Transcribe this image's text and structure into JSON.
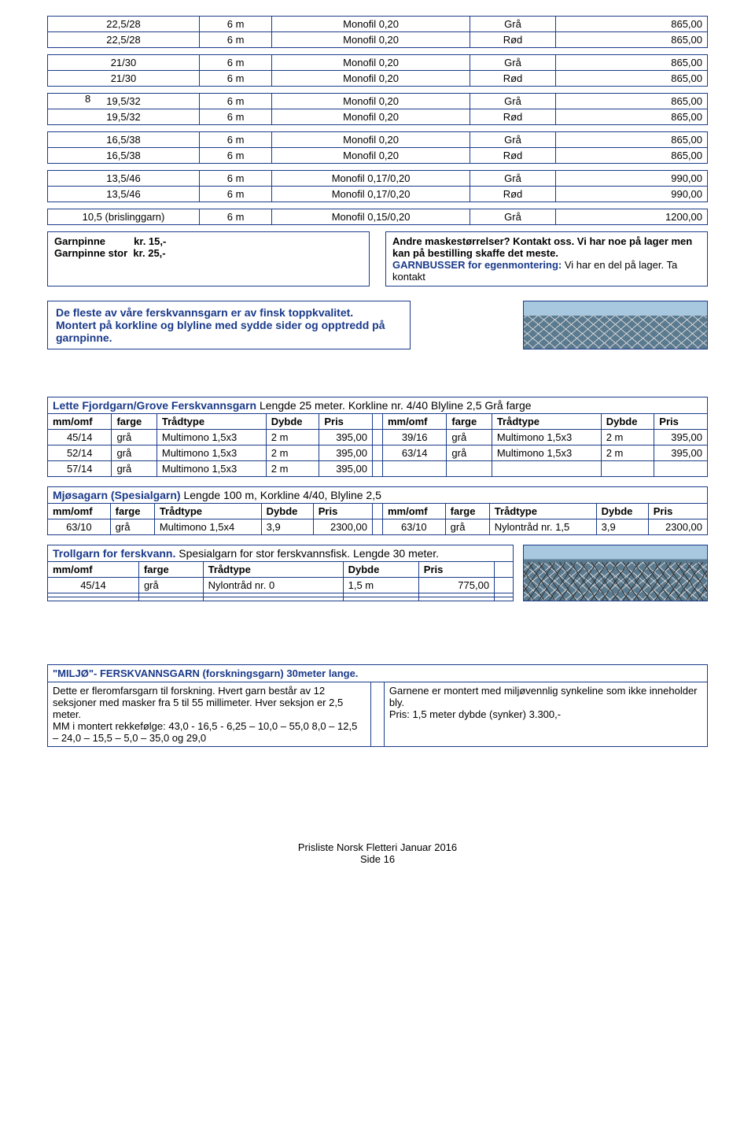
{
  "tables": {
    "a": [
      [
        "22,5/28",
        "6 m",
        "Monofil 0,20",
        "Grå",
        "865,00"
      ],
      [
        "22,5/28",
        "6 m",
        "Monofil 0,20",
        "Rød",
        "865,00"
      ]
    ],
    "b": [
      [
        "21/30",
        "6 m",
        "Monofil 0,20",
        "Grå",
        "865,00"
      ],
      [
        "21/30",
        "6 m",
        "Monofil 0,20",
        "Rød",
        "865,00"
      ]
    ],
    "c": [
      [
        "19,5/32",
        "6 m",
        "Monofil 0,20",
        "Grå",
        "865,00"
      ],
      [
        "19,5/32",
        "6 m",
        "Monofil 0,20",
        "Rød",
        "865,00"
      ]
    ],
    "d": [
      [
        "16,5/38",
        "6 m",
        "Monofil 0,20",
        "Grå",
        "865,00"
      ],
      [
        "16,5/38",
        "6 m",
        "Monofil 0,20",
        "Rød",
        "865,00"
      ]
    ],
    "e": [
      [
        "13,5/46",
        "6 m",
        "Monofil 0,17/0,20",
        "Grå",
        "990,00"
      ],
      [
        "13,5/46",
        "6 m",
        "Monofil 0,17/0,20",
        "Rød",
        "990,00"
      ]
    ],
    "f": [
      [
        "10,5 (brislinggarn)",
        "6 m",
        "Monofil 0,15/0,20",
        "Grå",
        "1200,00"
      ]
    ]
  },
  "stray8": "8",
  "pins": {
    "l1a": "Garnpinne",
    "l1b": "kr. 15,-",
    "l2a": "Garnpinne stor",
    "l2b": "kr. 25,-"
  },
  "note": {
    "q": "Andre maskestørrelser?  Kontakt oss. Vi har noe på lager men kan på bestilling skaffe det meste.",
    "link": "GARNBUSSER for egenmontering:",
    "rest": " Vi har en del på lager. Ta kontakt"
  },
  "info": {
    "l1": "De fleste av våre ferskvannsgarn er av finsk toppkvalitet.",
    "l2": "Montert på korkline og blyline med sydde sider og opptredd på garnpinne."
  },
  "lette": {
    "title1": "Lette Fjordgarn/Grove Ferskvannsgarn ",
    "title2": "Lengde 25 meter. Korkline nr. 4/40 Blyline 2,5 Grå farge",
    "hdr": [
      "mm/omf",
      "farge",
      "Trådtype",
      "Dybde",
      "Pris",
      "mm/omf",
      "farge",
      "Trådtype",
      "Dybde",
      "Pris"
    ],
    "rows": [
      [
        "45/14",
        "grå",
        "Multimono 1,5x3",
        "2 m",
        "395,00",
        "39/16",
        "grå",
        "Multimono 1,5x3",
        "2 m",
        "395,00"
      ],
      [
        "52/14",
        "grå",
        "Multimono 1,5x3",
        "2 m",
        "395,00",
        "63/14",
        "grå",
        "Multimono 1,5x3",
        "2 m",
        "395,00"
      ],
      [
        "57/14",
        "grå",
        "Multimono 1,5x3",
        "2 m",
        "395,00",
        "",
        "",
        "",
        "",
        ""
      ]
    ]
  },
  "mjosa": {
    "title1": "Mjøsagarn (Spesialgarn) ",
    "title2": "Lengde 100 m, Korkline 4/40, Blyline 2,5",
    "hdr": [
      "mm/omf",
      "farge",
      "Trådtype",
      "Dybde",
      "Pris",
      "mm/omf",
      "farge",
      "Trådtype",
      "Dybde",
      "Pris"
    ],
    "rows": [
      [
        "63/10",
        "grå",
        "Multimono 1,5x4",
        "3,9",
        "2300,00",
        "63/10",
        "grå",
        "Nylontråd nr. 1,5",
        "3,9",
        "2300,00"
      ]
    ]
  },
  "troll": {
    "title1": "Trollgarn for ferskvann.",
    "title2": " Spesialgarn for stor ferskvannsfisk. Lengde 30 meter.",
    "hdr": [
      "mm/omf",
      "farge",
      "Trådtype",
      "Dybde",
      "Pris"
    ],
    "rows": [
      [
        "45/14",
        "grå",
        "Nylontråd nr. 0",
        "1,5 m",
        "775,00"
      ],
      [
        "",
        "",
        "",
        "",
        ""
      ],
      [
        "",
        "",
        "",
        "",
        ""
      ]
    ]
  },
  "miljo": {
    "title": "\"MILJØ\"- FERSKVANNSGARN  (forskningsgarn) 30meter lange.",
    "left": "Dette er fleromfarsgarn til forskning. Hvert garn består av 12 seksjoner med masker fra 5 til 55 millimeter. Hver seksjon er 2,5 meter.\nMM i montert rekkefølge: 43,0 - 16,5 - 6,25 – 10,0 – 55,0 8,0 – 12,5 – 24,0 – 15,5 – 5,0 – 35,0 og 29,0",
    "right": "Garnene er montert med miljøvennlig synkeline som ikke inneholder bly.\nPris: 1,5 meter dybde (synker)  3.300,-"
  },
  "footer": {
    "l1": "Prisliste Norsk Fletteri Januar 2016",
    "l2": "Side 16"
  },
  "colors": {
    "border": "#1a3a8a",
    "link": "#1a3a8a",
    "bg": "#ffffff"
  }
}
